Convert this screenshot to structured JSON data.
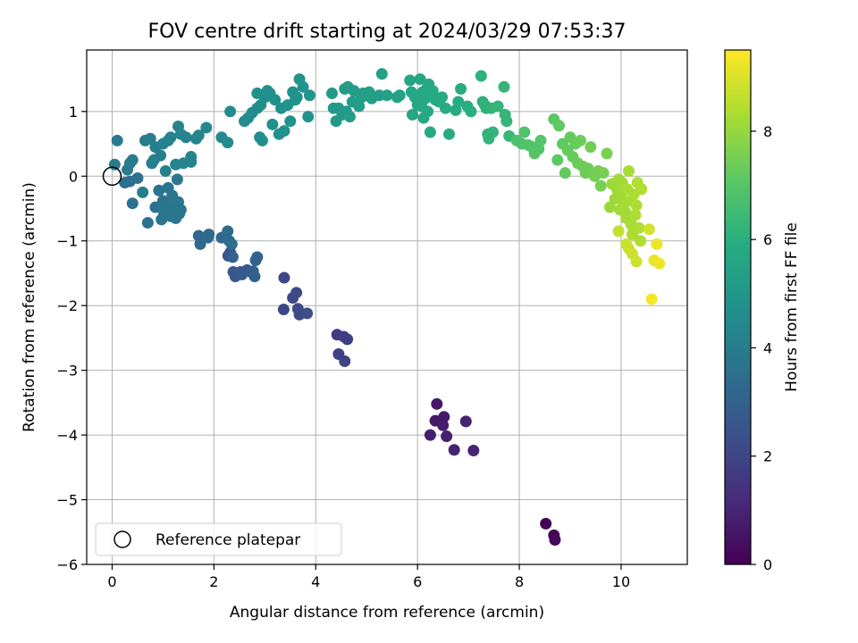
{
  "chart_data": {
    "type": "scatter",
    "title": "FOV centre drift starting at 2024/03/29 07:53:37",
    "xlabel": "Angular distance from reference (arcmin)",
    "ylabel": "Rotation from reference (arcmin)",
    "xlim": [
      -0.5,
      11.3
    ],
    "ylim": [
      -6.0,
      1.95
    ],
    "xticks": [
      0,
      2,
      4,
      6,
      8,
      10
    ],
    "yticks": [
      -6,
      -5,
      -4,
      -3,
      -2,
      -1,
      0,
      1
    ],
    "grid": true,
    "legend": {
      "placement": "lower-left",
      "entries": [
        "Reference platepar"
      ]
    },
    "reference_point": {
      "x": 0,
      "y": 0
    },
    "colorbar": {
      "label": "Hours from first FF file",
      "range": [
        0,
        9.5
      ],
      "ticks": [
        0,
        2,
        4,
        6,
        8
      ],
      "colormap": "viridis"
    },
    "series": [
      {
        "points": [
          [
            8.52,
            -5.37,
            0.1
          ],
          [
            8.68,
            -5.55,
            0.15
          ],
          [
            8.7,
            -5.62,
            0.2
          ],
          [
            6.38,
            -3.52,
            0.6
          ],
          [
            6.35,
            -3.78,
            0.65
          ],
          [
            6.52,
            -3.72,
            0.7
          ],
          [
            6.5,
            -3.85,
            0.75
          ],
          [
            6.25,
            -4.0,
            0.8
          ],
          [
            6.57,
            -4.02,
            0.85
          ],
          [
            6.95,
            -3.79,
            0.9
          ],
          [
            6.72,
            -4.23,
            0.95
          ],
          [
            7.1,
            -4.24,
            1.0
          ],
          [
            4.42,
            -2.45,
            1.7
          ],
          [
            4.55,
            -2.48,
            1.75
          ],
          [
            4.62,
            -2.52,
            1.8
          ],
          [
            4.45,
            -2.75,
            1.85
          ],
          [
            4.57,
            -2.86,
            1.9
          ],
          [
            3.38,
            -1.57,
            2.0
          ],
          [
            3.37,
            -2.06,
            2.05
          ],
          [
            3.55,
            -1.88,
            2.1
          ],
          [
            3.62,
            -1.8,
            2.15
          ],
          [
            3.65,
            -2.05,
            2.2
          ],
          [
            3.68,
            -2.14,
            2.25
          ],
          [
            3.83,
            -2.12,
            2.3
          ],
          [
            2.28,
            -1.23,
            2.5
          ],
          [
            2.32,
            -1.18,
            2.55
          ],
          [
            2.38,
            -1.48,
            2.6
          ],
          [
            2.42,
            -1.55,
            2.62
          ],
          [
            2.47,
            -1.5,
            2.65
          ],
          [
            2.52,
            -1.48,
            2.7
          ],
          [
            2.55,
            -1.52,
            2.75
          ],
          [
            2.65,
            -1.45,
            2.8
          ],
          [
            2.73,
            -1.48,
            2.85
          ],
          [
            2.77,
            -1.47,
            2.9
          ],
          [
            2.8,
            -1.55,
            2.92
          ],
          [
            2.82,
            -1.3,
            2.95
          ],
          [
            2.85,
            -1.25,
            3.0
          ],
          [
            2.37,
            -1.25,
            3.02
          ],
          [
            1.7,
            -0.92,
            3.2
          ],
          [
            1.73,
            -1.05,
            3.25
          ],
          [
            1.88,
            -0.95,
            3.28
          ],
          [
            1.9,
            -0.9,
            3.3
          ],
          [
            2.15,
            -0.95,
            3.32
          ],
          [
            2.27,
            -0.85,
            3.35
          ],
          [
            2.3,
            -1.0,
            3.38
          ],
          [
            2.35,
            -1.05,
            3.4
          ],
          [
            0.25,
            -0.1,
            3.5
          ],
          [
            0.35,
            -0.08,
            3.5
          ],
          [
            0.4,
            -0.42,
            3.55
          ],
          [
            0.5,
            -0.03,
            3.55
          ],
          [
            0.7,
            -0.72,
            3.6
          ],
          [
            0.85,
            -0.48,
            3.6
          ],
          [
            0.92,
            -0.22,
            3.62
          ],
          [
            0.97,
            -0.67,
            3.62
          ],
          [
            1.0,
            -0.38,
            3.65
          ],
          [
            1.02,
            -0.58,
            3.65
          ],
          [
            1.05,
            -0.45,
            3.68
          ],
          [
            1.1,
            -0.18,
            3.68
          ],
          [
            1.12,
            -0.5,
            3.7
          ],
          [
            1.15,
            -0.62,
            3.7
          ],
          [
            1.18,
            -0.3,
            3.72
          ],
          [
            1.2,
            -0.55,
            3.72
          ],
          [
            1.22,
            -0.42,
            3.75
          ],
          [
            1.25,
            -0.65,
            3.75
          ],
          [
            1.28,
            -0.05,
            3.78
          ],
          [
            1.3,
            -0.4,
            3.78
          ],
          [
            1.32,
            -0.58,
            3.8
          ],
          [
            1.35,
            -0.52,
            3.8
          ],
          [
            0.05,
            0.18,
            3.9
          ],
          [
            0.1,
            0.55,
            3.92
          ],
          [
            0.3,
            0.1,
            3.95
          ],
          [
            0.35,
            0.2,
            3.95
          ],
          [
            0.4,
            0.25,
            3.98
          ],
          [
            0.6,
            -0.25,
            4.0
          ],
          [
            0.65,
            0.55,
            4.02
          ],
          [
            0.75,
            0.58,
            4.05
          ],
          [
            0.78,
            0.2,
            4.05
          ],
          [
            0.82,
            0.25,
            4.08
          ],
          [
            0.85,
            0.45,
            4.1
          ],
          [
            0.95,
            0.32,
            4.1
          ],
          [
            1.0,
            0.5,
            4.12
          ],
          [
            1.05,
            0.08,
            4.15
          ],
          [
            1.1,
            0.55,
            4.15
          ],
          [
            1.15,
            0.6,
            4.18
          ],
          [
            1.25,
            0.18,
            4.2
          ],
          [
            1.3,
            0.77,
            4.22
          ],
          [
            1.35,
            0.65,
            4.25
          ],
          [
            1.4,
            0.2,
            4.25
          ],
          [
            1.45,
            0.6,
            4.28
          ],
          [
            1.55,
            0.3,
            4.3
          ],
          [
            1.55,
            0.22,
            4.3
          ],
          [
            1.65,
            0.58,
            4.32
          ],
          [
            1.7,
            0.63,
            4.35
          ],
          [
            1.85,
            0.75,
            4.38
          ],
          [
            2.15,
            0.6,
            4.5
          ],
          [
            2.27,
            0.52,
            4.55
          ],
          [
            2.32,
            1.0,
            4.55
          ],
          [
            2.6,
            0.85,
            4.6
          ],
          [
            2.67,
            0.9,
            4.6
          ],
          [
            2.75,
            0.98,
            4.62
          ],
          [
            2.85,
            1.05,
            4.62
          ],
          [
            2.9,
            0.6,
            4.65
          ],
          [
            2.92,
            1.1,
            4.65
          ],
          [
            2.85,
            1.28,
            4.68
          ],
          [
            2.95,
            0.55,
            4.68
          ],
          [
            3.0,
            1.22,
            4.7
          ],
          [
            3.05,
            1.32,
            4.7
          ],
          [
            3.1,
            1.28,
            4.72
          ],
          [
            3.15,
            0.8,
            4.72
          ],
          [
            3.2,
            1.18,
            4.75
          ],
          [
            3.28,
            0.65,
            4.75
          ],
          [
            3.32,
            1.05,
            4.78
          ],
          [
            3.38,
            0.7,
            4.78
          ],
          [
            3.45,
            1.1,
            4.8
          ],
          [
            3.5,
            0.85,
            4.8
          ],
          [
            3.55,
            1.3,
            4.82
          ],
          [
            3.6,
            1.18,
            4.82
          ],
          [
            3.63,
            1.22,
            4.85
          ],
          [
            3.68,
            1.5,
            4.85
          ],
          [
            3.75,
            1.38,
            4.88
          ],
          [
            3.85,
            0.92,
            4.88
          ],
          [
            3.88,
            1.25,
            4.9
          ],
          [
            4.32,
            1.28,
            5.1
          ],
          [
            4.35,
            1.05,
            5.12
          ],
          [
            4.4,
            0.85,
            5.12
          ],
          [
            4.45,
            1.05,
            5.15
          ],
          [
            4.52,
            0.95,
            5.15
          ],
          [
            4.57,
            1.35,
            5.18
          ],
          [
            4.6,
            1.0,
            5.18
          ],
          [
            4.63,
            1.38,
            5.2
          ],
          [
            4.67,
            0.92,
            5.2
          ],
          [
            4.72,
            1.15,
            5.22
          ],
          [
            4.75,
            1.32,
            5.22
          ],
          [
            4.85,
            1.08,
            5.25
          ],
          [
            4.9,
            1.22,
            5.25
          ],
          [
            4.93,
            1.28,
            5.28
          ],
          [
            5.0,
            1.25,
            5.3
          ],
          [
            5.05,
            1.3,
            5.3
          ],
          [
            5.1,
            1.2,
            5.32
          ],
          [
            5.25,
            1.25,
            5.35
          ],
          [
            5.3,
            1.58,
            5.38
          ],
          [
            5.4,
            1.25,
            5.4
          ],
          [
            5.6,
            1.22,
            5.42
          ],
          [
            5.65,
            1.25,
            5.45
          ],
          [
            5.85,
            1.48,
            5.6
          ],
          [
            5.88,
            1.3,
            5.62
          ],
          [
            5.9,
            0.95,
            5.62
          ],
          [
            5.95,
            1.22,
            5.65
          ],
          [
            6.0,
            1.1,
            5.65
          ],
          [
            6.05,
            1.5,
            5.68
          ],
          [
            6.08,
            1.08,
            5.7
          ],
          [
            6.1,
            1.3,
            5.7
          ],
          [
            6.12,
            0.9,
            5.72
          ],
          [
            6.15,
            1.2,
            5.72
          ],
          [
            6.18,
            1.35,
            5.75
          ],
          [
            6.2,
            1.0,
            5.75
          ],
          [
            6.22,
            1.42,
            5.78
          ],
          [
            6.25,
            0.68,
            5.78
          ],
          [
            6.3,
            1.32,
            5.8
          ],
          [
            6.35,
            1.18,
            5.8
          ],
          [
            6.42,
            1.15,
            5.82
          ],
          [
            6.48,
            1.22,
            5.85
          ],
          [
            6.55,
            1.05,
            5.85
          ],
          [
            6.62,
            0.65,
            5.88
          ],
          [
            6.75,
            1.02,
            5.9
          ],
          [
            6.8,
            1.15,
            5.92
          ],
          [
            6.85,
            1.35,
            5.92
          ],
          [
            6.98,
            1.08,
            5.95
          ],
          [
            7.05,
            1.0,
            5.98
          ],
          [
            7.25,
            1.55,
            6.1
          ],
          [
            7.28,
            1.15,
            6.12
          ],
          [
            7.32,
            1.1,
            6.15
          ],
          [
            7.35,
            1.05,
            6.15
          ],
          [
            7.38,
            0.65,
            6.18
          ],
          [
            7.4,
            0.58,
            6.2
          ],
          [
            7.45,
            1.05,
            6.2
          ],
          [
            7.48,
            0.68,
            6.22
          ],
          [
            7.58,
            1.08,
            6.25
          ],
          [
            7.7,
            1.38,
            6.28
          ],
          [
            7.72,
            0.95,
            6.3
          ],
          [
            7.75,
            0.85,
            6.3
          ],
          [
            7.8,
            0.62,
            6.32
          ],
          [
            7.95,
            0.55,
            6.8
          ],
          [
            8.05,
            0.5,
            6.82
          ],
          [
            8.1,
            0.68,
            6.85
          ],
          [
            8.18,
            0.48,
            6.88
          ],
          [
            8.25,
            0.45,
            6.9
          ],
          [
            8.3,
            0.35,
            6.92
          ],
          [
            8.38,
            0.42,
            6.95
          ],
          [
            8.42,
            0.55,
            6.98
          ],
          [
            8.68,
            0.88,
            7.1
          ],
          [
            8.75,
            0.25,
            7.12
          ],
          [
            8.78,
            0.78,
            7.15
          ],
          [
            8.85,
            0.5,
            7.18
          ],
          [
            8.9,
            0.05,
            7.2
          ],
          [
            8.95,
            0.4,
            7.22
          ],
          [
            9.0,
            0.6,
            7.25
          ],
          [
            9.05,
            0.3,
            7.28
          ],
          [
            9.1,
            0.5,
            7.3
          ],
          [
            9.15,
            0.2,
            7.32
          ],
          [
            9.2,
            0.55,
            7.35
          ],
          [
            9.25,
            0.15,
            7.38
          ],
          [
            9.3,
            0.05,
            7.4
          ],
          [
            9.35,
            0.12,
            7.42
          ],
          [
            9.4,
            0.45,
            7.45
          ],
          [
            9.48,
            0.0,
            7.48
          ],
          [
            9.55,
            0.08,
            7.5
          ],
          [
            9.6,
            -0.15,
            7.52
          ],
          [
            9.65,
            0.05,
            7.55
          ],
          [
            9.72,
            0.35,
            7.58
          ],
          [
            9.78,
            -0.48,
            8.1
          ],
          [
            9.82,
            -0.12,
            8.12
          ],
          [
            9.88,
            -0.35,
            8.15
          ],
          [
            9.92,
            -0.2,
            8.15
          ],
          [
            9.95,
            -0.05,
            8.18
          ],
          [
            9.98,
            -0.52,
            8.2
          ],
          [
            10.0,
            -0.3,
            8.2
          ],
          [
            10.02,
            -0.1,
            8.22
          ],
          [
            10.05,
            -0.42,
            8.22
          ],
          [
            10.08,
            -0.55,
            8.25
          ],
          [
            10.1,
            -0.65,
            8.25
          ],
          [
            10.12,
            -0.2,
            8.28
          ],
          [
            10.15,
            0.08,
            8.28
          ],
          [
            10.18,
            -0.38,
            8.3
          ],
          [
            10.2,
            -0.75,
            8.3
          ],
          [
            10.22,
            -0.9,
            8.32
          ],
          [
            10.25,
            -0.28,
            8.32
          ],
          [
            10.28,
            -0.6,
            8.35
          ],
          [
            10.3,
            -0.45,
            8.35
          ],
          [
            10.32,
            -0.1,
            8.38
          ],
          [
            10.35,
            -0.8,
            8.38
          ],
          [
            10.38,
            -1.0,
            8.4
          ],
          [
            10.4,
            -0.2,
            8.4
          ],
          [
            9.95,
            -0.85,
            8.7
          ],
          [
            10.1,
            -1.05,
            8.75
          ],
          [
            10.15,
            -1.12,
            8.78
          ],
          [
            10.22,
            -1.2,
            8.8
          ],
          [
            10.3,
            -1.32,
            8.82
          ],
          [
            10.55,
            -0.82,
            8.85
          ],
          [
            10.65,
            -1.3,
            9.2
          ],
          [
            10.7,
            -1.05,
            9.25
          ],
          [
            10.75,
            -1.35,
            9.3
          ],
          [
            10.6,
            -1.9,
            9.35
          ]
        ]
      }
    ]
  }
}
